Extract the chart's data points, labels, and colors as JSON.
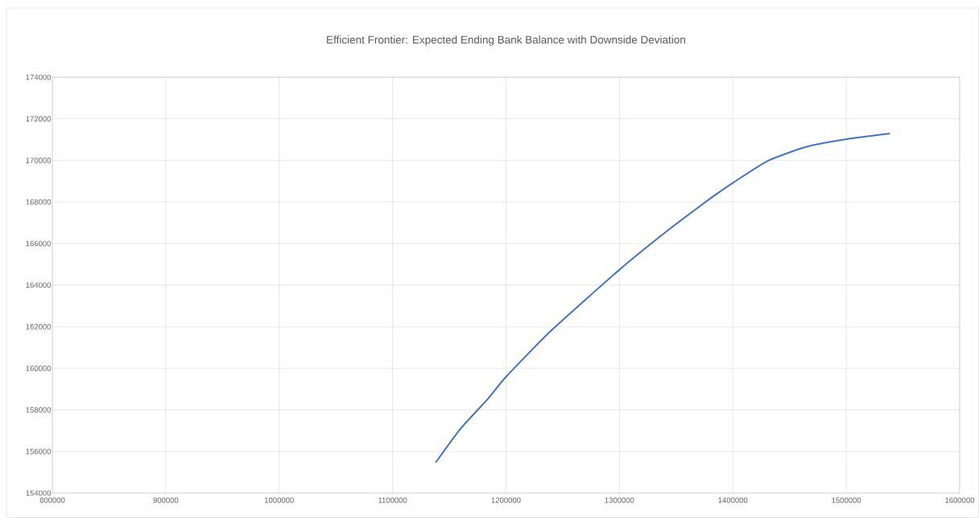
{
  "chart_data": {
    "type": "line",
    "title": "Efficient Frontier: Expected Ending Bank Balance with Downside Deviation",
    "x": [
      1138000,
      1160000,
      1183700,
      1200000,
      1240000,
      1300000,
      1341700,
      1381000,
      1400000,
      1431700,
      1465500,
      1500000,
      1538600
    ],
    "series": [
      {
        "color": "#4472c4",
        "values": [
          155470,
          157100,
          158510,
          159590,
          161820,
          164740,
          166590,
          168200,
          168920,
          170000,
          170660,
          171020,
          171290
        ]
      }
    ],
    "xlim": [
      800000,
      1600000
    ],
    "xticks": [
      800000,
      900000,
      1000000,
      1100000,
      1200000,
      1300000,
      1400000,
      1500000,
      1600000
    ],
    "ylim": [
      154000,
      174000
    ],
    "yticks": [
      154000,
      156000,
      158000,
      160000,
      162000,
      164000,
      166000,
      168000,
      170000,
      172000,
      174000
    ],
    "grid": true,
    "marker": "none",
    "line_style": "solid"
  }
}
